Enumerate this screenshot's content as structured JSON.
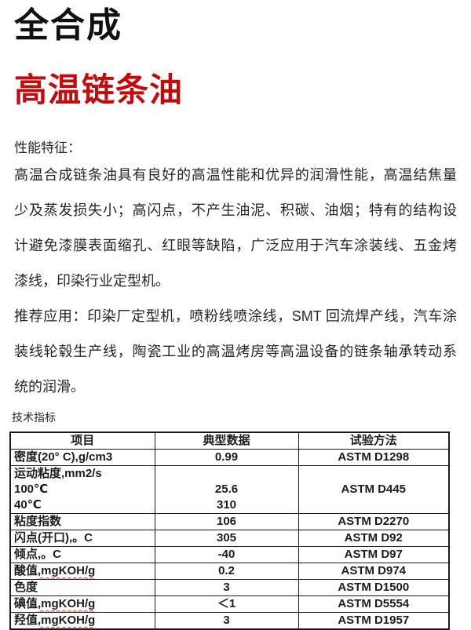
{
  "page": {
    "title_black": "全合成",
    "title_red": "高温链条油",
    "red_color": "#c30d0d",
    "squiggle_color": "#e53935"
  },
  "sections": {
    "features_heading": "性能特征：",
    "features_lines": [
      "高温合成链条油具有良好的高温性能和优异的润滑性能，高温结焦量",
      "少及蒸发损失小；高闪点，不产生油泥、积碳、油烟；特有的结构设",
      "计避免漆膜表面缩孔、红眼等缺陷，广泛应用于汽车涂装线、五金烤",
      "漆线，印染行业定型机。"
    ],
    "application_lines": [
      "推荐应用：印染厂定型机，喷粉线喷涂线，SMT 回流焊产线，汽车涂",
      "装线轮毂生产线，陶瓷工业的高温烤房等高温设备的链条轴承转动系",
      "统的润滑。"
    ],
    "table_caption": "技术指标"
  },
  "table": {
    "headers": [
      "项目",
      "典型数据",
      "试验方法"
    ],
    "rows": [
      {
        "item": "密度(20° C),g/cm3",
        "value": "0.99",
        "method": "ASTM D1298"
      },
      {
        "item_lines": [
          "运动粘度,mm2/s",
          "100℃",
          "40℃"
        ],
        "value_lines": [
          "",
          "25.6",
          "310"
        ],
        "method": "ASTM D445"
      },
      {
        "item": "粘度指数",
        "value": "106",
        "method": "ASTM D2270"
      },
      {
        "item": "闪点(开口),。C",
        "value": "305",
        "method": "ASTM D92"
      },
      {
        "item": "倾点,。C",
        "value": "-40",
        "method": "ASTM D97"
      },
      {
        "item": "酸值",
        "item_misspelled": ",mgKOH/g",
        "value": "0.2",
        "method": "ASTM D974"
      },
      {
        "item": "色度",
        "value": "3",
        "method": "ASTM D1500"
      },
      {
        "item": "碘值",
        "item_misspelled": ",mgKOH/g",
        "value": "＜1",
        "method": "ASTM D5554"
      },
      {
        "item": "羟值",
        "item_misspelled": ",mgKOH/g",
        "value": "3",
        "method": "ASTM D1957"
      }
    ]
  }
}
